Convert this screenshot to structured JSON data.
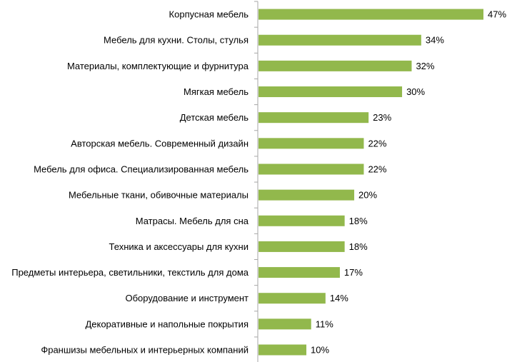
{
  "chart_data": {
    "type": "bar",
    "orientation": "horizontal",
    "title": "",
    "xlabel": "",
    "ylabel": "",
    "xlim": [
      0,
      47
    ],
    "grid": false,
    "legend": "none",
    "bar_color": "#92B84C",
    "axis_color": "#A6A6A6",
    "categories": [
      "Корпусная мебель",
      "Мебель для кухни. Столы, стулья",
      "Материалы, комплектующие и фурнитура",
      "Мягкая мебель",
      "Детская мебель",
      "Авторская мебель. Современный дизайн",
      "Мебель для офиса. Специализированная мебель",
      "Мебельные ткани, обивочные материалы",
      "Матрасы. Мебель для сна",
      "Техника и аксессуары для кухни",
      "Предметы интерьера, светильники, текстиль для дома",
      "Оборудование и инструмент",
      "Декоративные и напольные покрытия",
      "Франшизы мебельных и интерьерных компаний"
    ],
    "values": [
      47,
      34,
      32,
      30,
      23,
      22,
      22,
      20,
      18,
      18,
      17,
      14,
      11,
      10
    ],
    "value_labels": [
      "47%",
      "34%",
      "32%",
      "30%",
      "23%",
      "22%",
      "22%",
      "20%",
      "18%",
      "18%",
      "17%",
      "14%",
      "11%",
      "10%"
    ]
  }
}
